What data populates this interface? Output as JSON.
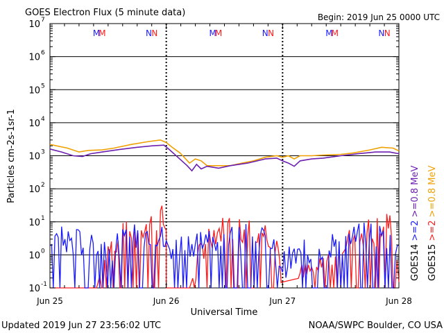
{
  "header": {
    "title": "GOES Electron Flux (5 minute data)",
    "begin": "Begin: 2019 Jun 25 0000 UTC"
  },
  "footer": {
    "updated": "Updated 2019 Jun 27 23:56:02 UTC",
    "credit": "NOAA/SWPC Boulder, CO USA"
  },
  "colors": {
    "goes14_08": "#6a1fb0",
    "goes15_08": "#f0a000",
    "goes14_2": "#1a1aff",
    "goes15_2": "#ff1a1a",
    "grid": "#000000",
    "threshold": "#000000"
  },
  "chart_data": {
    "type": "line",
    "title": "GOES Electron Flux (5 minute data)",
    "xlabel": "Universal Time",
    "ylabel": "Particles cm-2s-1sr-1",
    "yscale": "log",
    "ylim": [
      0.1,
      10000000
    ],
    "y_tick_labels": [
      {
        "base": "10",
        "exp": "-1"
      },
      {
        "base": "10",
        "exp": "0"
      },
      {
        "base": "10",
        "exp": "1"
      },
      {
        "base": "10",
        "exp": "2"
      },
      {
        "base": "10",
        "exp": "3"
      },
      {
        "base": "10",
        "exp": "4"
      },
      {
        "base": "10",
        "exp": "5"
      },
      {
        "base": "10",
        "exp": "6"
      },
      {
        "base": "10",
        "exp": "7"
      }
    ],
    "x_tick_labels": [
      "Jun 25",
      "Jun 26",
      "Jun 27",
      "Jun 28"
    ],
    "xlim_days": [
      0,
      3
    ],
    "threshold": 1000,
    "markers": [
      {
        "day": 0,
        "items": [
          {
            "letter": "M",
            "color": "#1a1aff",
            "frac": 0.4
          },
          {
            "letter": "M",
            "color": "#ff1a1a",
            "frac": 0.45
          },
          {
            "letter": "N",
            "color": "#1a1aff",
            "frac": 0.85
          },
          {
            "letter": "N",
            "color": "#ff1a1a",
            "frac": 0.9
          }
        ]
      },
      {
        "day": 1,
        "items": [
          {
            "letter": "M",
            "color": "#1a1aff",
            "frac": 0.4
          },
          {
            "letter": "M",
            "color": "#ff1a1a",
            "frac": 0.45
          },
          {
            "letter": "N",
            "color": "#1a1aff",
            "frac": 0.85
          },
          {
            "letter": "N",
            "color": "#ff1a1a",
            "frac": 0.9
          }
        ]
      },
      {
        "day": 2,
        "items": [
          {
            "letter": "M",
            "color": "#1a1aff",
            "frac": 0.4
          },
          {
            "letter": "M",
            "color": "#ff1a1a",
            "frac": 0.45
          },
          {
            "letter": "N",
            "color": "#1a1aff",
            "frac": 0.85
          },
          {
            "letter": "N",
            "color": "#ff1a1a",
            "frac": 0.9
          }
        ]
      }
    ],
    "right_legend": [
      {
        "text": "GOES14",
        "color": "#000000"
      },
      {
        "text": ">=2",
        "color": "#1a1aff"
      },
      {
        "text": ">=0.8 MeV",
        "color": "#6a1fb0"
      },
      {
        "text": "GOES15",
        "color": "#000000"
      },
      {
        "text": ">=2",
        "color": "#ff1a1a"
      },
      {
        "text": ">=0.8 MeV",
        "color": "#f0a000"
      }
    ],
    "series": [
      {
        "name": "GOES15 >=0.8 MeV",
        "color": "#f0a000",
        "points": [
          [
            0,
            2200
          ],
          [
            0.15,
            1700
          ],
          [
            0.25,
            1300
          ],
          [
            0.33,
            1450
          ],
          [
            0.45,
            1500
          ],
          [
            0.55,
            1700
          ],
          [
            0.7,
            2200
          ],
          [
            0.85,
            2700
          ],
          [
            0.95,
            3000
          ],
          [
            1.0,
            2500
          ],
          [
            1.05,
            1800
          ],
          [
            1.12,
            1200
          ],
          [
            1.2,
            600
          ],
          [
            1.25,
            800
          ],
          [
            1.3,
            700
          ],
          [
            1.35,
            500
          ],
          [
            1.45,
            500
          ],
          [
            1.55,
            500
          ],
          [
            1.65,
            600
          ],
          [
            1.75,
            700
          ],
          [
            1.85,
            900
          ],
          [
            1.95,
            1000
          ],
          [
            2.0,
            900
          ],
          [
            2.05,
            1000
          ],
          [
            2.1,
            800
          ],
          [
            2.15,
            1000
          ],
          [
            2.25,
            1000
          ],
          [
            2.35,
            1050
          ],
          [
            2.5,
            1100
          ],
          [
            2.6,
            1200
          ],
          [
            2.75,
            1500
          ],
          [
            2.85,
            1800
          ],
          [
            2.95,
            1700
          ],
          [
            3.0,
            1400
          ]
        ]
      },
      {
        "name": "GOES14 >=0.8 MeV",
        "color": "#6a1fb0",
        "points": [
          [
            0,
            1600
          ],
          [
            0.1,
            1300
          ],
          [
            0.2,
            1000
          ],
          [
            0.28,
            950
          ],
          [
            0.35,
            1150
          ],
          [
            0.45,
            1300
          ],
          [
            0.6,
            1550
          ],
          [
            0.75,
            1800
          ],
          [
            0.88,
            2000
          ],
          [
            0.98,
            2100
          ],
          [
            1.03,
            1500
          ],
          [
            1.1,
            900
          ],
          [
            1.18,
            500
          ],
          [
            1.22,
            350
          ],
          [
            1.26,
            550
          ],
          [
            1.3,
            400
          ],
          [
            1.35,
            480
          ],
          [
            1.45,
            420
          ],
          [
            1.55,
            500
          ],
          [
            1.7,
            600
          ],
          [
            1.85,
            800
          ],
          [
            1.95,
            850
          ],
          [
            2.0,
            700
          ],
          [
            2.05,
            600
          ],
          [
            2.1,
            480
          ],
          [
            2.15,
            700
          ],
          [
            2.25,
            800
          ],
          [
            2.35,
            850
          ],
          [
            2.5,
            1000
          ],
          [
            2.65,
            1150
          ],
          [
            2.8,
            1300
          ],
          [
            2.92,
            1300
          ],
          [
            3.0,
            1150
          ]
        ]
      },
      {
        "name": "GOES15 >=2",
        "color": "#ff1a1a",
        "noisy": true,
        "points": [
          [
            0,
            0.1
          ],
          [
            0.2,
            0.1
          ],
          [
            0.4,
            0.1
          ],
          [
            0.5,
            1.5
          ],
          [
            0.6,
            3
          ],
          [
            0.7,
            5
          ],
          [
            0.8,
            8
          ],
          [
            0.9,
            12
          ],
          [
            0.95,
            15
          ],
          [
            1.0,
            6
          ],
          [
            1.0,
            0.1
          ],
          [
            1.1,
            0.1
          ],
          [
            1.2,
            0.1
          ],
          [
            1.35,
            4
          ],
          [
            1.5,
            6
          ],
          [
            1.7,
            6
          ],
          [
            1.85,
            5
          ],
          [
            1.95,
            3
          ],
          [
            2.0,
            0.15
          ],
          [
            2.15,
            0.2
          ],
          [
            2.35,
            0.5
          ],
          [
            2.5,
            2
          ],
          [
            2.65,
            4
          ],
          [
            2.8,
            6
          ],
          [
            2.95,
            9
          ],
          [
            3.0,
            0.15
          ]
        ]
      },
      {
        "name": "GOES14 >=2",
        "color": "#1a1aff",
        "noisy": true,
        "points": [
          [
            0,
            3
          ],
          [
            0.2,
            2.5
          ],
          [
            0.4,
            2
          ],
          [
            0.55,
            1.5
          ],
          [
            0.7,
            3
          ],
          [
            0.85,
            5
          ],
          [
            0.95,
            4
          ],
          [
            1.0,
            1.5
          ],
          [
            1.1,
            2
          ],
          [
            1.25,
            2.5
          ],
          [
            1.4,
            3
          ],
          [
            1.55,
            3.5
          ],
          [
            1.7,
            3
          ],
          [
            1.85,
            2.5
          ],
          [
            2.0,
            0.5
          ],
          [
            2.1,
            0.8
          ],
          [
            2.3,
            1.5
          ],
          [
            2.5,
            2.5
          ],
          [
            2.7,
            3.5
          ],
          [
            2.85,
            4
          ],
          [
            3.0,
            2
          ]
        ]
      }
    ]
  }
}
